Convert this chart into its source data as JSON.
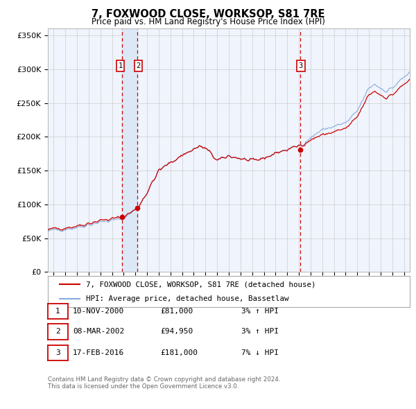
{
  "title": "7, FOXWOOD CLOSE, WORKSOP, S81 7RE",
  "subtitle": "Price paid vs. HM Land Registry's House Price Index (HPI)",
  "legend_line1": "7, FOXWOOD CLOSE, WORKSOP, S81 7RE (detached house)",
  "legend_line2": "HPI: Average price, detached house, Bassetlaw",
  "footer1": "Contains HM Land Registry data © Crown copyright and database right 2024.",
  "footer2": "This data is licensed under the Open Government Licence v3.0.",
  "transactions": [
    {
      "num": "1",
      "date": "10-NOV-2000",
      "price": "£81,000",
      "pct": "3% ↑ HPI"
    },
    {
      "num": "2",
      "date": "08-MAR-2002",
      "price": "£94,950",
      "pct": "3% ↑ HPI"
    },
    {
      "num": "3",
      "date": "17-FEB-2016",
      "price": "£181,000",
      "pct": "7% ↓ HPI"
    }
  ],
  "t1": 2000.866,
  "t2": 2002.185,
  "t3": 2016.12,
  "transaction_prices": [
    81000,
    94950,
    181000
  ],
  "ylim": [
    0,
    360000
  ],
  "xlim_start": 1994.5,
  "xlim_end": 2025.5,
  "red_line_color": "#cc0000",
  "blue_line_color": "#88aadd",
  "dot_color": "#cc0000",
  "shade_color": "#dce8f5",
  "grid_color": "#cccccc",
  "background_color": "#ffffff",
  "plot_bg_color": "#f0f4fc"
}
